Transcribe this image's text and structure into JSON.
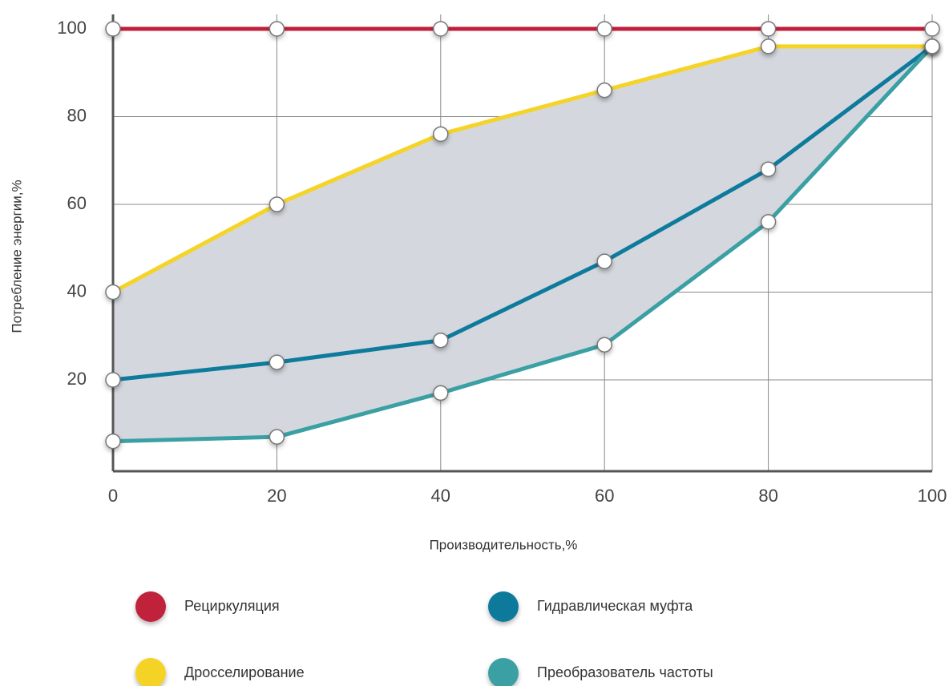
{
  "chart_data": {
    "type": "line",
    "xlabel": "Производительность,%",
    "ylabel": "Потребление энергии,%",
    "x": [
      0,
      20,
      40,
      60,
      80,
      100
    ],
    "series": [
      {
        "name": "Рециркуляция",
        "color": "#c0203a",
        "values": [
          100,
          100,
          100,
          100,
          100,
          100
        ]
      },
      {
        "name": "Дросселирование",
        "color": "#f5d327",
        "values": [
          40,
          60,
          76,
          86,
          96,
          96
        ]
      },
      {
        "name": "Гидравлическая муфта",
        "color": "#0e7a9c",
        "values": [
          20,
          24,
          29,
          47,
          68,
          96
        ]
      },
      {
        "name": "Преобразователь частоты",
        "color": "#3aa0a4",
        "values": [
          6,
          7,
          17,
          28,
          56,
          96
        ]
      }
    ],
    "xlim": [
      0,
      100
    ],
    "xticks": [
      0,
      20,
      40,
      60,
      80,
      100
    ],
    "ylim": [
      0,
      100
    ],
    "yticks": [
      20,
      40,
      60,
      80,
      100
    ],
    "grid": true
  }
}
